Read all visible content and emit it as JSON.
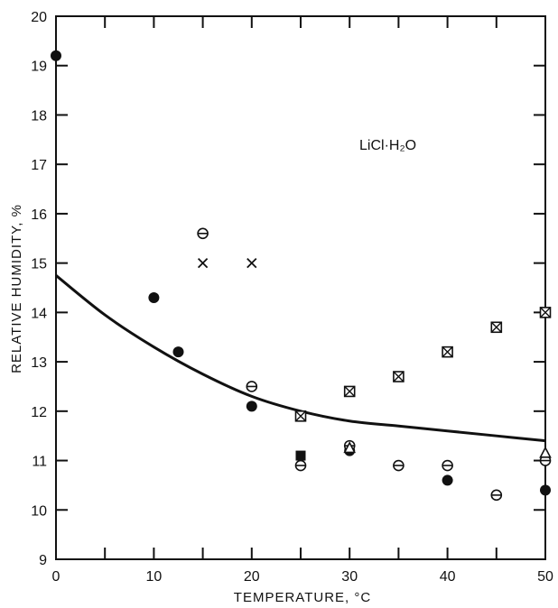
{
  "chart_data": {
    "type": "scatter",
    "title": "",
    "annotation": "LiCl·H₂O",
    "xlabel": "TEMPERATURE, °C",
    "ylabel": "RELATIVE HUMIDITY, %",
    "xlim": [
      0,
      50
    ],
    "ylim": [
      9,
      20
    ],
    "x_ticks": [
      0,
      10,
      20,
      30,
      40,
      50
    ],
    "y_ticks": [
      9,
      10,
      11,
      12,
      13,
      14,
      15,
      16,
      17,
      18,
      19,
      20
    ],
    "grid": false,
    "series": [
      {
        "marker": "filled-circle",
        "points": [
          [
            0,
            19.2
          ],
          [
            10,
            14.3
          ],
          [
            12.5,
            13.2
          ],
          [
            20,
            12.1
          ],
          [
            30,
            11.2
          ],
          [
            40,
            10.6
          ],
          [
            50,
            10.4
          ]
        ]
      },
      {
        "marker": "barred-circle",
        "points": [
          [
            15,
            15.6
          ],
          [
            20,
            12.5
          ],
          [
            25,
            10.9
          ],
          [
            30,
            11.3
          ],
          [
            35,
            10.9
          ],
          [
            40,
            10.9
          ],
          [
            45,
            10.3
          ],
          [
            50,
            11.0
          ]
        ]
      },
      {
        "marker": "x",
        "points": [
          [
            15,
            15.0
          ],
          [
            20,
            15.0
          ]
        ]
      },
      {
        "marker": "boxed-x",
        "points": [
          [
            25,
            11.9
          ],
          [
            30,
            12.4
          ],
          [
            35,
            12.7
          ],
          [
            40,
            13.2
          ],
          [
            45,
            13.7
          ],
          [
            50,
            14.0
          ]
        ]
      },
      {
        "marker": "filled-square",
        "points": [
          [
            25,
            11.1
          ]
        ]
      },
      {
        "marker": "triangle",
        "points": [
          [
            30,
            11.25
          ],
          [
            50,
            11.15
          ]
        ]
      },
      {
        "marker": "vertical-dash",
        "points": [
          [
            50,
            10.7
          ]
        ]
      }
    ],
    "curve": {
      "type": "line",
      "points": [
        [
          0,
          14.75
        ],
        [
          5,
          13.95
        ],
        [
          10,
          13.3
        ],
        [
          15,
          12.75
        ],
        [
          20,
          12.3
        ],
        [
          25,
          12.0
        ],
        [
          30,
          11.8
        ],
        [
          35,
          11.7
        ],
        [
          40,
          11.6
        ],
        [
          45,
          11.5
        ],
        [
          50,
          11.4
        ]
      ]
    }
  }
}
